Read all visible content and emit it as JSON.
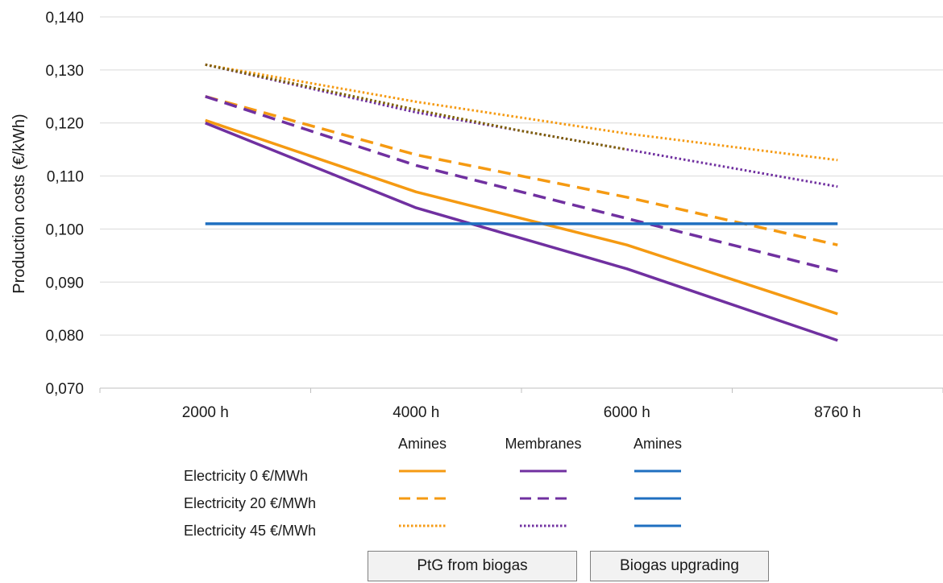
{
  "chart_data": {
    "type": "line",
    "title": "",
    "xlabel": "",
    "ylabel": "Production costs (€/kWh)",
    "categories": [
      "2000 h",
      "4000 h",
      "6000 h",
      "8760 h"
    ],
    "ylim": [
      0.07,
      0.14
    ],
    "yticks": [
      0.07,
      0.08,
      0.09,
      0.1,
      0.11,
      0.12,
      0.13,
      0.14
    ],
    "ytick_labels": [
      "0,070",
      "0,080",
      "0,090",
      "0,100",
      "0,110",
      "0,120",
      "0,130",
      "0,140"
    ],
    "grid": true,
    "colors": {
      "amines": "#f59a12",
      "membranes": "#7030a0",
      "upgrading": "#1f6fc0",
      "overlap": "#7f6000"
    },
    "series": [
      {
        "group": "PtG from biogas",
        "method": "Amines",
        "electricity": "Electricity 0 €/MWh",
        "style": "solid",
        "color": "#f59a12",
        "values": [
          0.1205,
          0.107,
          0.097,
          0.084
        ]
      },
      {
        "group": "PtG from biogas",
        "method": "Amines",
        "electricity": "Electricity 20 €/MWh",
        "style": "dashed",
        "color": "#f59a12",
        "values": [
          0.125,
          0.114,
          0.106,
          0.097
        ]
      },
      {
        "group": "PtG from biogas",
        "method": "Amines",
        "electricity": "Electricity 45 €/MWh",
        "style": "dotted",
        "color": "#f59a12",
        "values": [
          0.131,
          0.124,
          0.118,
          0.113
        ]
      },
      {
        "group": "PtG from biogas",
        "method": "Membranes",
        "electricity": "Electricity 0 €/MWh",
        "style": "solid",
        "color": "#7030a0",
        "values": [
          0.12,
          0.104,
          0.0925,
          0.079
        ]
      },
      {
        "group": "PtG from biogas",
        "method": "Membranes",
        "electricity": "Electricity 20 €/MWh",
        "style": "dashed",
        "color": "#7030a0",
        "values": [
          0.125,
          0.112,
          0.102,
          0.092
        ]
      },
      {
        "group": "PtG from biogas",
        "method": "Membranes",
        "electricity": "Electricity 45 €/MWh",
        "style": "dotted",
        "color": "#7030a0",
        "values": [
          0.131,
          0.122,
          0.115,
          0.108
        ]
      },
      {
        "group": "Biogas upgrading",
        "method": "Amines",
        "electricity": "Electricity 0 €/MWh",
        "style": "solid",
        "color": "#1f6fc0",
        "values": [
          0.101,
          0.101,
          0.101,
          0.101
        ]
      }
    ],
    "legend": {
      "columns": [
        "Amines",
        "Membranes",
        "Amines"
      ],
      "rows": [
        "Electricity 0 €/MWh",
        "Electricity 20 €/MWh",
        "Electricity 45 €/MWh"
      ],
      "groups": [
        "PtG from biogas",
        "Biogas upgrading"
      ]
    }
  }
}
